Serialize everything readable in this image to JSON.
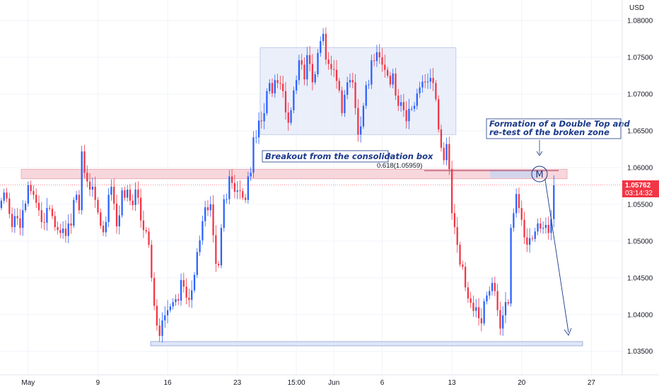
{
  "chart_data": {
    "type": "candlestick",
    "currency_label": "USD",
    "y_ticks": [
      "1.08000",
      "1.07500",
      "1.07000",
      "1.06500",
      "1.06000",
      "1.05500",
      "1.05000",
      "1.04500",
      "1.04000",
      "1.03500"
    ],
    "y_tick_values": [
      1.08,
      1.075,
      1.07,
      1.065,
      1.06,
      1.055,
      1.05,
      1.045,
      1.04,
      1.035
    ],
    "x_ticks": [
      "May",
      "9",
      "16",
      "23",
      "15:00",
      "Jun",
      "6",
      "13",
      "20",
      "27"
    ],
    "x_tick_index": [
      10,
      36,
      62,
      88,
      110,
      124,
      142,
      168,
      194,
      220
    ],
    "ylim": [
      1.0318,
      1.0828
    ],
    "bars_visible": 232,
    "current_price": {
      "label": "1.05762",
      "value": 1.05762,
      "countdown": "03:14:32"
    },
    "zones": {
      "resistance_zone": [
        1.05848,
        1.05977
      ],
      "consolidation_box": {
        "bars": [
          97,
          170
        ],
        "price": [
          1.06449,
          1.07633
        ]
      },
      "support_line": 1.03604
    },
    "fib_level": {
      "label": "0.618(1.05959)",
      "value": 1.05959
    },
    "annotations": {
      "breakout": "Breakout from the consolidation box",
      "double_top_line1": "Formation of a Double Top and",
      "double_top_line2": "re-test of the broken zone",
      "pattern_letter": "M"
    },
    "colors": {
      "up": "#2962ff",
      "down": "#f23645",
      "zone": "#f8d7dc",
      "box": "#e4eaf8",
      "badge": "#f23645"
    },
    "closes": [
      1.0555,
      1.0566,
      1.0558,
      1.0537,
      1.0519,
      1.0534,
      1.0531,
      1.0518,
      1.0542,
      1.0551,
      1.0576,
      1.0568,
      1.0563,
      1.0552,
      1.0542,
      1.0526,
      1.0525,
      1.0545,
      1.0544,
      1.0534,
      1.0519,
      1.0515,
      1.0511,
      1.0517,
      1.0507,
      1.0524,
      1.0521,
      1.0556,
      1.0563,
      1.0542,
      1.0622,
      1.0593,
      1.0581,
      1.057,
      1.0574,
      1.0556,
      1.0539,
      1.0521,
      1.0512,
      1.0526,
      1.0563,
      1.0574,
      1.0551,
      1.052,
      1.0535,
      1.0569,
      1.0559,
      1.057,
      1.0555,
      1.0549,
      1.057,
      1.0559,
      1.0528,
      1.0515,
      1.0513,
      1.0495,
      1.045,
      1.0412,
      1.0385,
      1.0371,
      1.0392,
      1.0399,
      1.0406,
      1.0411,
      1.0417,
      1.0421,
      1.0419,
      1.0447,
      1.0438,
      1.0423,
      1.042,
      1.0433,
      1.0454,
      1.0485,
      1.0501,
      1.0527,
      1.0546,
      1.0542,
      1.055,
      1.0508,
      1.0469,
      1.0467,
      1.0518,
      1.0557,
      1.0557,
      1.0588,
      1.0579,
      1.0567,
      1.0569,
      1.0568,
      1.0559,
      1.0556,
      1.0588,
      1.0593,
      1.0641,
      1.0641,
      1.0664,
      1.0663,
      1.0674,
      1.0704,
      1.0715,
      1.0701,
      1.0719,
      1.0715,
      1.0714,
      1.0704,
      1.0675,
      1.0661,
      1.0678,
      1.0705,
      1.0719,
      1.0746,
      1.074,
      1.072,
      1.0753,
      1.0741,
      1.0716,
      1.0727,
      1.0756,
      1.0772,
      1.0782,
      1.0747,
      1.0741,
      1.0734,
      1.0733,
      1.0718,
      1.0705,
      1.0674,
      1.0699,
      1.0716,
      1.0719,
      1.0716,
      1.0681,
      1.0645,
      1.0656,
      1.0684,
      1.0712,
      1.0713,
      1.0746,
      1.0745,
      1.0757,
      1.075,
      1.074,
      1.0733,
      1.0725,
      1.0713,
      1.0728,
      1.0698,
      1.0684,
      1.0689,
      1.0678,
      1.0663,
      1.068,
      1.068,
      1.0684,
      1.0701,
      1.0709,
      1.0717,
      1.0716,
      1.0717,
      1.0722,
      1.0715,
      1.0693,
      1.0652,
      1.0627,
      1.061,
      1.0632,
      1.0598,
      1.0538,
      1.0519,
      1.0495,
      1.0468,
      1.0465,
      1.0437,
      1.0422,
      1.0416,
      1.0405,
      1.041,
      1.0395,
      1.0388,
      1.0418,
      1.0426,
      1.0432,
      1.0443,
      1.0432,
      1.0406,
      1.0381,
      1.0399,
      1.0417,
      1.0415,
      1.0518,
      1.0538,
      1.0564,
      1.0545,
      1.0529,
      1.0505,
      1.0495,
      1.0504,
      1.0503,
      1.0513,
      1.0524,
      1.0517,
      1.0518,
      1.0522,
      1.0511,
      1.053,
      1.0576
    ]
  }
}
